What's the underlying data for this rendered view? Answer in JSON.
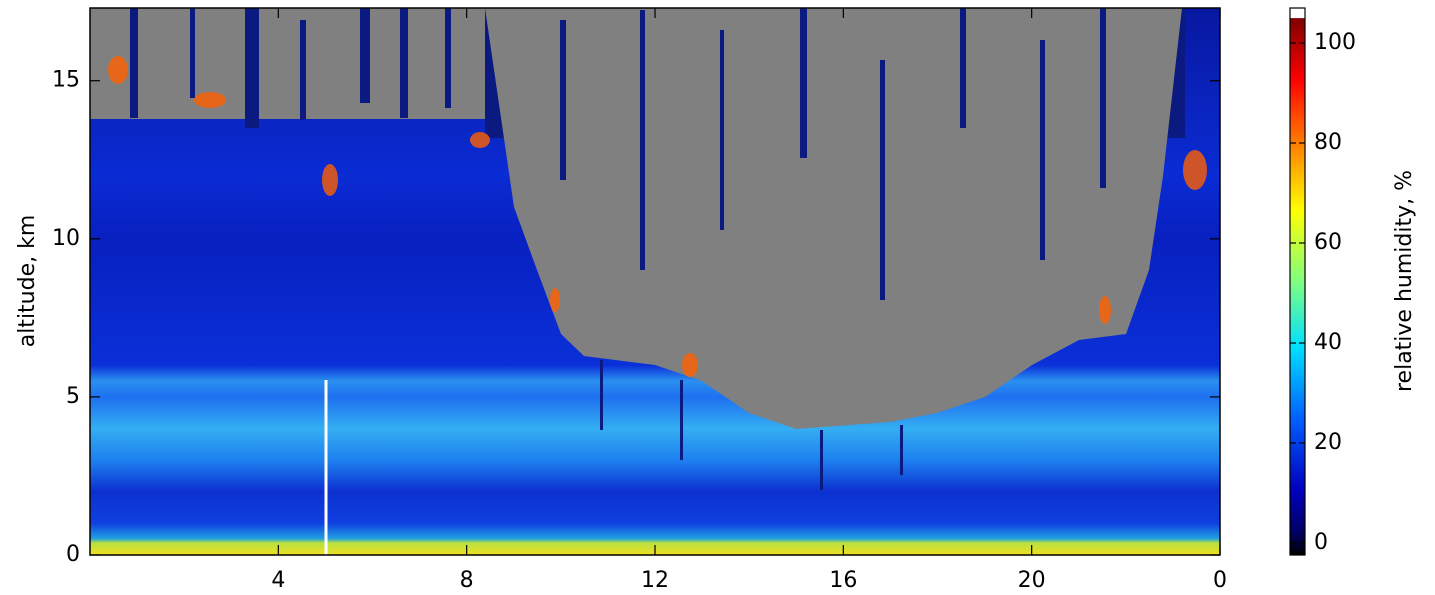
{
  "chart_data": {
    "type": "heatmap",
    "ylabel": "altitude, km",
    "xlim": [
      0,
      24
    ],
    "xticks": [
      4,
      8,
      12,
      16,
      20,
      {
        "value": 24,
        "label": "0"
      }
    ],
    "ylim": [
      0,
      17.3
    ],
    "yticks": [
      0,
      5,
      10,
      15
    ],
    "colorbar": {
      "label": "relative humidity, %",
      "clim": [
        -2.4,
        107
      ],
      "ticks": [
        0,
        20,
        40,
        60,
        80,
        100
      ]
    }
  }
}
